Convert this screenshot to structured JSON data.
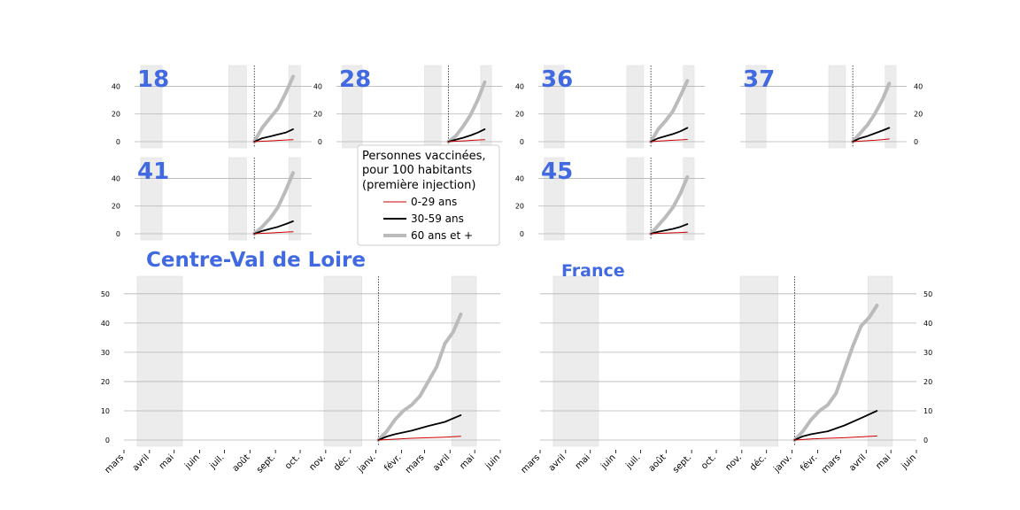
{
  "legend": {
    "title_lines": [
      "Personnes vaccinées,",
      "pour 100 habitants",
      "(première injection)"
    ],
    "entries": [
      {
        "label": "0-29 ans",
        "color": "#cc0000"
      },
      {
        "label": "30-59 ans",
        "color": "#000000"
      },
      {
        "label": "60 ans et +",
        "color": "#bbbbbb"
      }
    ]
  },
  "months": [
    "mars",
    "avril",
    "mai",
    "juin",
    "juil.",
    "août",
    "sept.",
    "oct.",
    "nov.",
    "déc.",
    "janv.",
    "févr.",
    "mars",
    "avril",
    "mai",
    "juin"
  ],
  "colors": {
    "label": "#4169e1",
    "shade": "#ececec",
    "grid": "#b4b4b4"
  },
  "chart_data": {
    "type": "line",
    "x_unit": "month",
    "x_range": [
      "2020-03",
      "2021-06"
    ],
    "shaded_periods": [
      [
        "2020-03-17",
        "2020-05-11"
      ],
      [
        "2020-10-30",
        "2020-12-15"
      ],
      [
        "2021-04-03",
        "2021-05-03"
      ]
    ],
    "vaccination_start": "2021-01-04",
    "series_names": [
      "0-29 ans",
      "30-59 ans",
      "60 ans et +"
    ],
    "panels": [
      {
        "label": "18",
        "yticks": [
          0,
          20,
          40
        ],
        "ylim": [
          0,
          55
        ],
        "series": {
          "young": [
            [
              0,
              0
            ],
            [
              20,
              0.3
            ],
            [
              40,
              0.6
            ],
            [
              60,
              0.9
            ],
            [
              80,
              1.2
            ],
            [
              99,
              1.5
            ]
          ],
          "mid": [
            [
              0,
              0
            ],
            [
              20,
              2.5
            ],
            [
              40,
              3.8
            ],
            [
              60,
              5.2
            ],
            [
              80,
              6.5
            ],
            [
              99,
              9
            ]
          ],
          "old": [
            [
              0,
              0
            ],
            [
              20,
              10
            ],
            [
              40,
              17
            ],
            [
              60,
              24
            ],
            [
              80,
              35
            ],
            [
              99,
              47
            ]
          ]
        }
      },
      {
        "label": "28",
        "yticks": [
          0,
          20,
          40
        ],
        "ylim": [
          0,
          55
        ],
        "series": {
          "young": [
            [
              0,
              0
            ],
            [
              20,
              0.3
            ],
            [
              40,
              0.6
            ],
            [
              60,
              0.9
            ],
            [
              80,
              1.2
            ],
            [
              99,
              1.5
            ]
          ],
          "mid": [
            [
              0,
              0
            ],
            [
              20,
              1.5
            ],
            [
              40,
              2.8
            ],
            [
              60,
              4.5
            ],
            [
              80,
              6.5
            ],
            [
              99,
              9
            ]
          ],
          "old": [
            [
              0,
              0
            ],
            [
              20,
              4
            ],
            [
              40,
              11
            ],
            [
              60,
              19
            ],
            [
              80,
              30
            ],
            [
              99,
              43
            ]
          ]
        }
      },
      {
        "label": "36",
        "yticks": [
          0,
          20,
          40
        ],
        "ylim": [
          0,
          55
        ],
        "series": {
          "young": [
            [
              0,
              0
            ],
            [
              20,
              0.4
            ],
            [
              40,
              0.7
            ],
            [
              60,
              1
            ],
            [
              80,
              1.3
            ],
            [
              99,
              1.6
            ]
          ],
          "mid": [
            [
              0,
              0
            ],
            [
              20,
              2.5
            ],
            [
              40,
              4
            ],
            [
              60,
              5.5
            ],
            [
              80,
              7.5
            ],
            [
              99,
              10
            ]
          ],
          "old": [
            [
              0,
              0
            ],
            [
              20,
              9
            ],
            [
              40,
              15
            ],
            [
              60,
              22
            ],
            [
              80,
              33
            ],
            [
              99,
              44
            ]
          ]
        }
      },
      {
        "label": "37",
        "yticks": [
          0,
          20,
          40
        ],
        "ylim": [
          0,
          55
        ],
        "series": {
          "young": [
            [
              0,
              0
            ],
            [
              20,
              0.4
            ],
            [
              40,
              0.7
            ],
            [
              60,
              1
            ],
            [
              80,
              1.5
            ],
            [
              99,
              2
            ]
          ],
          "mid": [
            [
              0,
              0
            ],
            [
              20,
              2.5
            ],
            [
              40,
              4
            ],
            [
              60,
              6
            ],
            [
              80,
              8
            ],
            [
              99,
              10
            ]
          ],
          "old": [
            [
              0,
              0
            ],
            [
              20,
              6
            ],
            [
              40,
              12
            ],
            [
              60,
              20
            ],
            [
              80,
              30
            ],
            [
              99,
              42
            ]
          ]
        }
      },
      {
        "label": "41",
        "yticks": [
          0,
          20,
          40
        ],
        "ylim": [
          0,
          55
        ],
        "series": {
          "young": [
            [
              0,
              0
            ],
            [
              20,
              0.3
            ],
            [
              40,
              0.6
            ],
            [
              60,
              0.9
            ],
            [
              80,
              1.2
            ],
            [
              99,
              1.5
            ]
          ],
          "mid": [
            [
              0,
              0
            ],
            [
              20,
              2
            ],
            [
              40,
              3.5
            ],
            [
              60,
              5
            ],
            [
              80,
              7
            ],
            [
              99,
              9
            ]
          ],
          "old": [
            [
              0,
              0
            ],
            [
              20,
              5
            ],
            [
              40,
              11
            ],
            [
              60,
              19
            ],
            [
              80,
              31
            ],
            [
              99,
              44
            ]
          ]
        }
      },
      {
        "label": "45",
        "yticks": [
          0,
          20,
          40
        ],
        "ylim": [
          0,
          55
        ],
        "series": {
          "young": [
            [
              0,
              0
            ],
            [
              20,
              0.3
            ],
            [
              40,
              0.5
            ],
            [
              60,
              0.7
            ],
            [
              80,
              0.9
            ],
            [
              99,
              1.1
            ]
          ],
          "mid": [
            [
              0,
              0
            ],
            [
              20,
              1.5
            ],
            [
              40,
              2.5
            ],
            [
              60,
              3.5
            ],
            [
              80,
              5
            ],
            [
              99,
              7
            ]
          ],
          "old": [
            [
              0,
              0
            ],
            [
              20,
              6
            ],
            [
              40,
              12
            ],
            [
              60,
              19
            ],
            [
              80,
              29
            ],
            [
              99,
              41
            ]
          ]
        }
      },
      {
        "label": "Centre-Val de Loire",
        "yticks": [
          0,
          10,
          20,
          30,
          40,
          50
        ],
        "ylim": [
          0,
          56
        ],
        "series": {
          "young": [
            [
              0,
              0
            ],
            [
              20,
              0.3
            ],
            [
              40,
              0.6
            ],
            [
              60,
              0.8
            ],
            [
              80,
              1
            ],
            [
              99,
              1.3
            ]
          ],
          "mid": [
            [
              0,
              0
            ],
            [
              10,
              1.2
            ],
            [
              20,
              2
            ],
            [
              40,
              3.2
            ],
            [
              60,
              4.8
            ],
            [
              80,
              6.2
            ],
            [
              99,
              8.5
            ]
          ],
          "old": [
            [
              0,
              0
            ],
            [
              10,
              3
            ],
            [
              20,
              7
            ],
            [
              30,
              10
            ],
            [
              40,
              12
            ],
            [
              50,
              15
            ],
            [
              60,
              20
            ],
            [
              70,
              25
            ],
            [
              80,
              33
            ],
            [
              90,
              37
            ],
            [
              99,
              43
            ]
          ]
        }
      },
      {
        "label": "France",
        "yticks": [
          0,
          10,
          20,
          30,
          40,
          50
        ],
        "ylim": [
          0,
          56
        ],
        "series": {
          "young": [
            [
              0,
              0
            ],
            [
              20,
              0.4
            ],
            [
              40,
              0.6
            ],
            [
              60,
              0.8
            ],
            [
              80,
              1.1
            ],
            [
              99,
              1.4
            ]
          ],
          "mid": [
            [
              0,
              0
            ],
            [
              10,
              1.3
            ],
            [
              20,
              2
            ],
            [
              40,
              3
            ],
            [
              60,
              5
            ],
            [
              80,
              7.5
            ],
            [
              99,
              10
            ]
          ],
          "old": [
            [
              0,
              0
            ],
            [
              10,
              3
            ],
            [
              20,
              7
            ],
            [
              30,
              10
            ],
            [
              40,
              12
            ],
            [
              50,
              16
            ],
            [
              60,
              24
            ],
            [
              70,
              32
            ],
            [
              80,
              39
            ],
            [
              90,
              42
            ],
            [
              99,
              46
            ]
          ]
        }
      }
    ]
  }
}
